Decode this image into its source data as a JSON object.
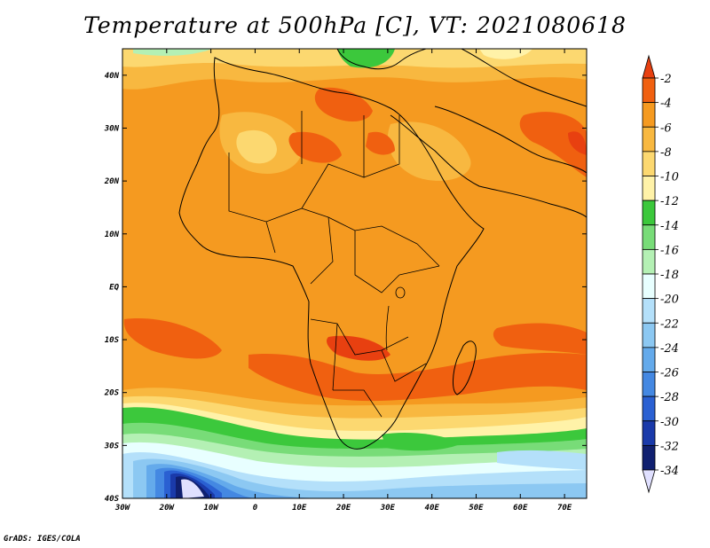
{
  "title": "Temperature at 500hPa [C], VT: 2021080618",
  "credit": "GrADS: IGES/COLA",
  "map": {
    "extent": {
      "lon": [
        -30,
        75
      ],
      "lat": [
        -40,
        45
      ]
    },
    "lat_ticks": [
      {
        "value": 40,
        "label": "40N"
      },
      {
        "value": 30,
        "label": "30N"
      },
      {
        "value": 20,
        "label": "20N"
      },
      {
        "value": 10,
        "label": "10N"
      },
      {
        "value": 0,
        "label": "EQ"
      },
      {
        "value": -10,
        "label": "10S"
      },
      {
        "value": -20,
        "label": "20S"
      },
      {
        "value": -30,
        "label": "30S"
      },
      {
        "value": -40,
        "label": "40S"
      }
    ],
    "lon_ticks": [
      {
        "value": -30,
        "label": "30W"
      },
      {
        "value": -20,
        "label": "20W"
      },
      {
        "value": -10,
        "label": "10W"
      },
      {
        "value": 0,
        "label": "0"
      },
      {
        "value": 10,
        "label": "10E"
      },
      {
        "value": 20,
        "label": "20E"
      },
      {
        "value": 30,
        "label": "30E"
      },
      {
        "value": 40,
        "label": "40E"
      },
      {
        "value": 50,
        "label": "50E"
      },
      {
        "value": 60,
        "label": "60E"
      },
      {
        "value": 70,
        "label": "70E"
      }
    ]
  },
  "colorbar": {
    "labels": [
      "-2",
      "-4",
      "-6",
      "-8",
      "-10",
      "-12",
      "-14",
      "-16",
      "-18",
      "-20",
      "-22",
      "-24",
      "-26",
      "-28",
      "-30",
      "-32",
      "-34"
    ],
    "colors": [
      "#e84010",
      "#f06010",
      "#f59a20",
      "#f8b840",
      "#fcd870",
      "#fff2a8",
      "#3cc83c",
      "#78dc78",
      "#b4f0b4",
      "#e8ffff",
      "#b4e0fa",
      "#8cc8f2",
      "#64aaeb",
      "#4488e2",
      "#2a60d2",
      "#1a3aaa",
      "#102070",
      "#e0e0ff"
    ]
  }
}
